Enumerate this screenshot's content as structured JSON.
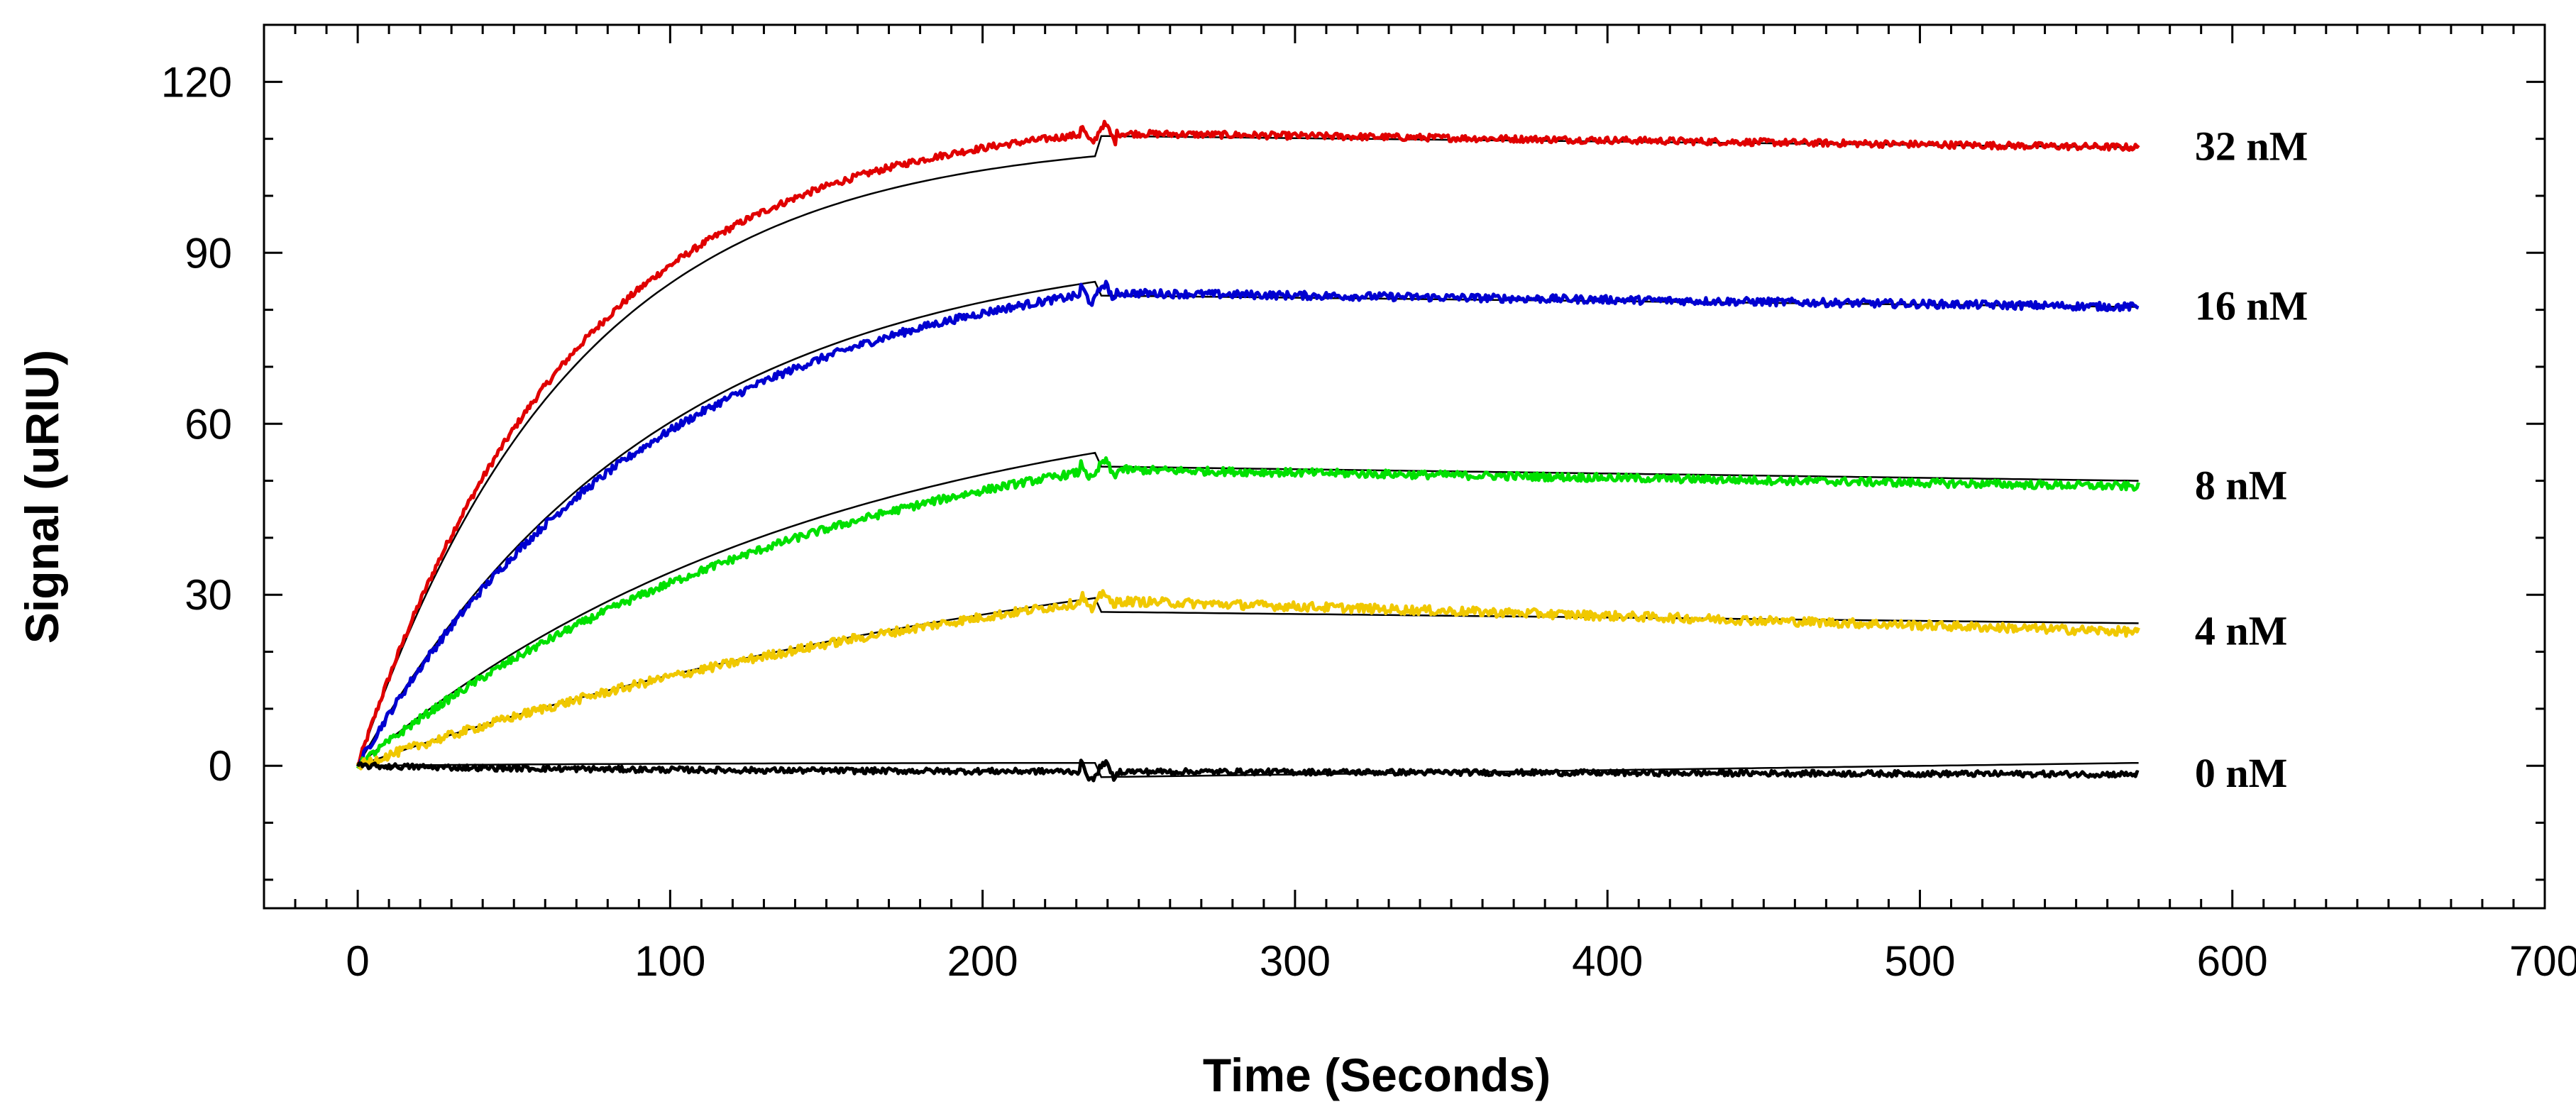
{
  "chart_data": {
    "type": "line",
    "title": "",
    "xlabel": "Time (Seconds)",
    "ylabel": "Signal (uRIU)",
    "xlim": [
      -30,
      700
    ],
    "ylim": [
      -25,
      130
    ],
    "xticks": [
      0,
      100,
      200,
      300,
      400,
      500,
      600,
      700
    ],
    "xtick_labels": [
      "0",
      "100",
      "200",
      "300",
      "400",
      "500",
      "600",
      "700"
    ],
    "yticks": [
      0,
      30,
      60,
      90,
      120
    ],
    "ytick_labels": [
      "0",
      "30",
      "60",
      "90",
      "120"
    ],
    "grid": false,
    "association_end_s": 237,
    "end_time_s": 570,
    "series": [
      {
        "name": "32 nM",
        "label": "32 nM",
        "color": "#e00000",
        "plateau": 111,
        "dissociation_end": 108.5,
        "fit_assoc_end": 107,
        "fit_dissoc_end": 108.5
      },
      {
        "name": "16 nM",
        "label": "16 nM",
        "color": "#0000d0",
        "plateau": 83,
        "dissociation_end": 80.5,
        "fit_assoc_end": 85,
        "fit_dissoc_end": 80.5
      },
      {
        "name": "8 nM",
        "label": "8 nM",
        "color": "#00e000",
        "plateau": 52,
        "dissociation_end": 49,
        "fit_assoc_end": 55,
        "fit_dissoc_end": 50
      },
      {
        "name": "4 nM",
        "label": "4 nM",
        "color": "#f0c800",
        "plateau": 29,
        "dissociation_end": 23.5,
        "fit_assoc_end": 29.5,
        "fit_dissoc_end": 25
      },
      {
        "name": "0 nM",
        "label": "0 nM",
        "color": "#000000",
        "plateau": -1,
        "dissociation_end": -1.5,
        "fit_assoc_end": 0.5,
        "fit_dissoc_end": 0.5
      }
    ]
  }
}
